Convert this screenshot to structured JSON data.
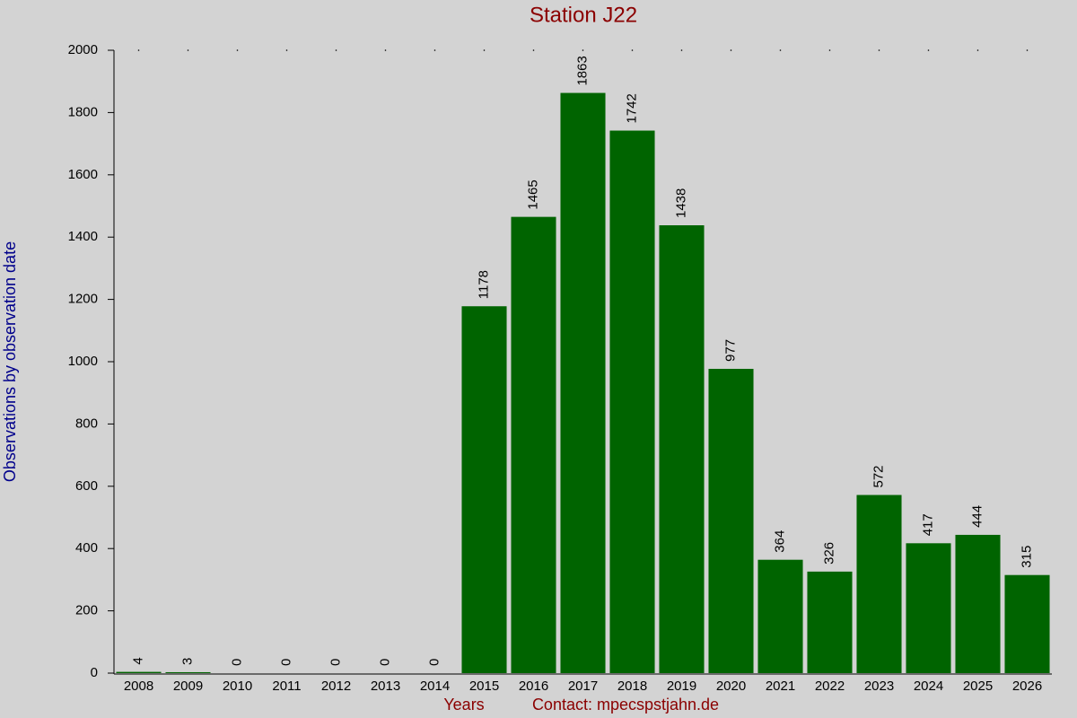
{
  "chart_data": {
    "type": "bar",
    "title": "Station J22",
    "x_label": "Years",
    "note": "Contact: mpecspstjahn.de",
    "y_label": "Observations by observation date",
    "categories": [
      "2008",
      "2009",
      "2010",
      "2011",
      "2012",
      "2013",
      "2014",
      "2015",
      "2016",
      "2017",
      "2018",
      "2019",
      "2020",
      "2021",
      "2022",
      "2023",
      "2024",
      "2025",
      "2026"
    ],
    "values": [
      4,
      3,
      0,
      0,
      0,
      0,
      0,
      1178,
      1465,
      1863,
      1742,
      1438,
      977,
      364,
      326,
      572,
      417,
      444,
      315
    ],
    "color": "#006400",
    "ylim": [
      0,
      2000
    ],
    "yticks": [
      0,
      200,
      400,
      600,
      800,
      1000,
      1200,
      1400,
      1600,
      1800,
      2000
    ],
    "grid": false
  }
}
